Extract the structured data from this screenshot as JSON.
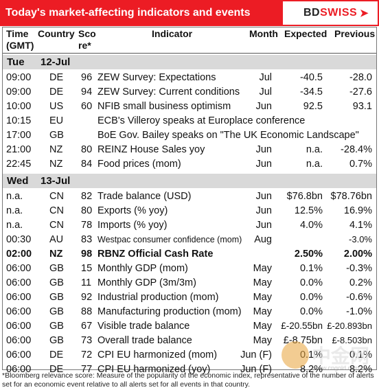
{
  "title": "Today's market-affecting indicators and events",
  "logo": {
    "bd": "BD",
    "swiss": "SWISS"
  },
  "columns": {
    "time": "Time",
    "time2": "(GMT)",
    "country": "Country",
    "score": "Sco",
    "score2": "re*",
    "indicator": "Indicator",
    "month": "Month",
    "expected": "Expected",
    "previous": "Previous"
  },
  "days": [
    {
      "dow": "Tue",
      "date": "12-Jul",
      "rows": [
        {
          "time": "09:00",
          "country": "DE",
          "score": "96",
          "indicator": "ZEW Survey: Expectations",
          "month": "Jul",
          "expected": "-40.5",
          "previous": "-28.0"
        },
        {
          "time": "09:00",
          "country": "DE",
          "score": "94",
          "indicator": "ZEW Survey: Current conditions",
          "month": "Jul",
          "expected": "-34.5",
          "previous": "-27.6"
        },
        {
          "time": "10:00",
          "country": "US",
          "score": "60",
          "indicator": "NFIB small business optimism",
          "month": "Jun",
          "expected": "92.5",
          "previous": "93.1"
        },
        {
          "time": "10:15",
          "country": "EU",
          "score": "",
          "indicator": "ECB's Villeroy speaks at Europlace conference",
          "month": "",
          "expected": "",
          "previous": ""
        },
        {
          "time": "17:00",
          "country": "GB",
          "score": "",
          "indicator": "BoE Gov. Bailey speaks on \"The UK Economic Landscape\"",
          "month": "",
          "expected": "",
          "previous": ""
        },
        {
          "time": "21:00",
          "country": "NZ",
          "score": "80",
          "indicator": "REINZ House Sales yoy",
          "month": "Jun",
          "expected": "n.a.",
          "previous": "-28.4%"
        },
        {
          "time": "22:45",
          "country": "NZ",
          "score": "84",
          "indicator": "Food prices (mom)",
          "month": "Jun",
          "expected": "n.a.",
          "previous": "0.7%"
        }
      ]
    },
    {
      "dow": "Wed",
      "date": "13-Jul",
      "rows": [
        {
          "time": "n.a.",
          "country": "CN",
          "score": "82",
          "indicator": "Trade balance (USD)",
          "month": "Jun",
          "expected": "$76.8bn",
          "previous": "$78.76bn"
        },
        {
          "time": "n.a.",
          "country": "CN",
          "score": "80",
          "indicator": "Exports (% yoy)",
          "month": "Jun",
          "expected": "12.5%",
          "previous": "16.9%"
        },
        {
          "time": "n.a.",
          "country": "CN",
          "score": "78",
          "indicator": "Imports (% yoy)",
          "month": "Jun",
          "expected": "4.0%",
          "previous": "4.1%"
        },
        {
          "time": "00:30",
          "country": "AU",
          "score": "83",
          "indicator": "Westpac consumer confidence (mom)",
          "month": "Aug",
          "expected": "",
          "previous": "-3.0%",
          "small": true
        },
        {
          "time": "02:00",
          "country": "NZ",
          "score": "98",
          "indicator": "RBNZ Official Cash Rate",
          "month": "",
          "expected": "2.50%",
          "previous": "2.00%",
          "bold": true
        },
        {
          "time": "06:00",
          "country": "GB",
          "score": "15",
          "indicator": "Monthly GDP (mom)",
          "month": "May",
          "expected": "0.1%",
          "previous": "-0.3%"
        },
        {
          "time": "06:00",
          "country": "GB",
          "score": "11",
          "indicator": "Monthly GDP (3m/3m)",
          "month": "May",
          "expected": "0.0%",
          "previous": "0.2%"
        },
        {
          "time": "06:00",
          "country": "GB",
          "score": "92",
          "indicator": "Industrial production (mom)",
          "month": "May",
          "expected": "0.0%",
          "previous": "-0.6%"
        },
        {
          "time": "06:00",
          "country": "GB",
          "score": "88",
          "indicator": "Manufacturing production (mom)",
          "month": "May",
          "expected": "0.0%",
          "previous": "-1.0%"
        },
        {
          "time": "06:00",
          "country": "GB",
          "score": "67",
          "indicator": "Visible trade balance",
          "month": "May",
          "expected": "£-20.55bn",
          "previous": "£-20.893bn",
          "small": true
        },
        {
          "time": "06:00",
          "country": "GB",
          "score": "73",
          "indicator": "Overall trade balance",
          "month": "May",
          "expected": "£-8.75bn",
          "previous": "£-8.503bn",
          "small": true
        },
        {
          "time": "06:00",
          "country": "DE",
          "score": "72",
          "indicator": "CPI EU harmonized (mom)",
          "month": "Jun (F)",
          "expected": "0.1%",
          "previous": "0.1%"
        },
        {
          "time": "06:00",
          "country": "DE",
          "score": "77",
          "indicator": "CPI EU harmonized (yoy)",
          "month": "Jun (F)",
          "expected": "8.2%",
          "previous": "8.2%"
        }
      ]
    }
  ],
  "footnote": "*Bloomberg relevance score:  Measure of the popularity of the economic index, representative of the number of alerts set for an economic event relative to all alerts set for all events in that country.",
  "watermark": {
    "text": "中金网",
    "sub": "www.cngold.com.cn"
  }
}
